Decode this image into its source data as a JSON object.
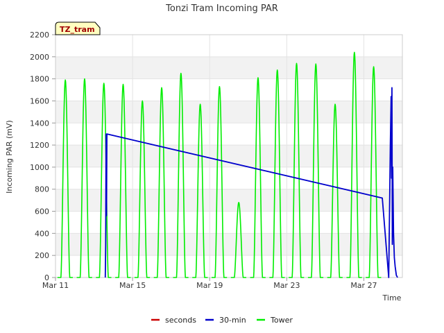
{
  "chart_data": {
    "type": "line",
    "title": "Tonzi Tram Incoming PAR",
    "xlabel": "Time",
    "ylabel": "Incoming PAR (mV)",
    "site_tag": "TZ_tram",
    "xlim": [
      "2024-03-11",
      "2024-03-29"
    ],
    "ylim": [
      0,
      2200
    ],
    "y_ticks": [
      0,
      200,
      400,
      600,
      800,
      1000,
      1200,
      1400,
      1600,
      1800,
      2000,
      2200
    ],
    "x_ticks": [
      {
        "date": "2024-03-11",
        "label": "Mar 11"
      },
      {
        "date": "2024-03-15",
        "label": "Mar 15"
      },
      {
        "date": "2024-03-19",
        "label": "Mar 19"
      },
      {
        "date": "2024-03-23",
        "label": "Mar 23"
      },
      {
        "date": "2024-03-27",
        "label": "Mar 27"
      }
    ],
    "grid": true,
    "legend_position": "bottom",
    "series": [
      {
        "name": "seconds",
        "color": "#cc0000",
        "points": []
      },
      {
        "name": "30-min",
        "color": "#0000cc",
        "points": [
          [
            "2024-03-13 14:00",
            0
          ],
          [
            "2024-03-13 14:30",
            290
          ],
          [
            "2024-03-13 15:00",
            1300
          ],
          [
            "2024-03-13 15:30",
            560
          ],
          [
            "2024-03-13 16:00",
            1300
          ],
          [
            "2024-03-27 23:00",
            720
          ],
          [
            "2024-03-28 07:00",
            0
          ],
          [
            "2024-03-28 09:00",
            1200
          ],
          [
            "2024-03-28 10:00",
            1640
          ],
          [
            "2024-03-28 10:30",
            900
          ],
          [
            "2024-03-28 11:00",
            1720
          ],
          [
            "2024-03-28 11:30",
            300
          ],
          [
            "2024-03-28 12:00",
            1000
          ],
          [
            "2024-03-28 13:00",
            400
          ],
          [
            "2024-03-28 14:00",
            180
          ],
          [
            "2024-03-28 15:00",
            100
          ],
          [
            "2024-03-28 16:30",
            20
          ],
          [
            "2024-03-28 18:00",
            0
          ]
        ]
      },
      {
        "name": "Tower",
        "color": "#00ee00",
        "daily_peaks": [
          {
            "date": "2024-03-11",
            "peak": 1790
          },
          {
            "date": "2024-03-12",
            "peak": 1800
          },
          {
            "date": "2024-03-13",
            "peak": 1760
          },
          {
            "date": "2024-03-14",
            "peak": 1750
          },
          {
            "date": "2024-03-15",
            "peak": 1600
          },
          {
            "date": "2024-03-16",
            "peak": 1720
          },
          {
            "date": "2024-03-17",
            "peak": 1850
          },
          {
            "date": "2024-03-18",
            "peak": 1570
          },
          {
            "date": "2024-03-19",
            "peak": 1730
          },
          {
            "date": "2024-03-20",
            "peak": 680
          },
          {
            "date": "2024-03-21",
            "peak": 1810
          },
          {
            "date": "2024-03-22",
            "peak": 1880
          },
          {
            "date": "2024-03-23",
            "peak": 1940
          },
          {
            "date": "2024-03-24",
            "peak": 1935
          },
          {
            "date": "2024-03-25",
            "peak": 1570
          },
          {
            "date": "2024-03-26",
            "peak": 2040
          },
          {
            "date": "2024-03-27",
            "peak": 1910
          }
        ]
      }
    ]
  }
}
